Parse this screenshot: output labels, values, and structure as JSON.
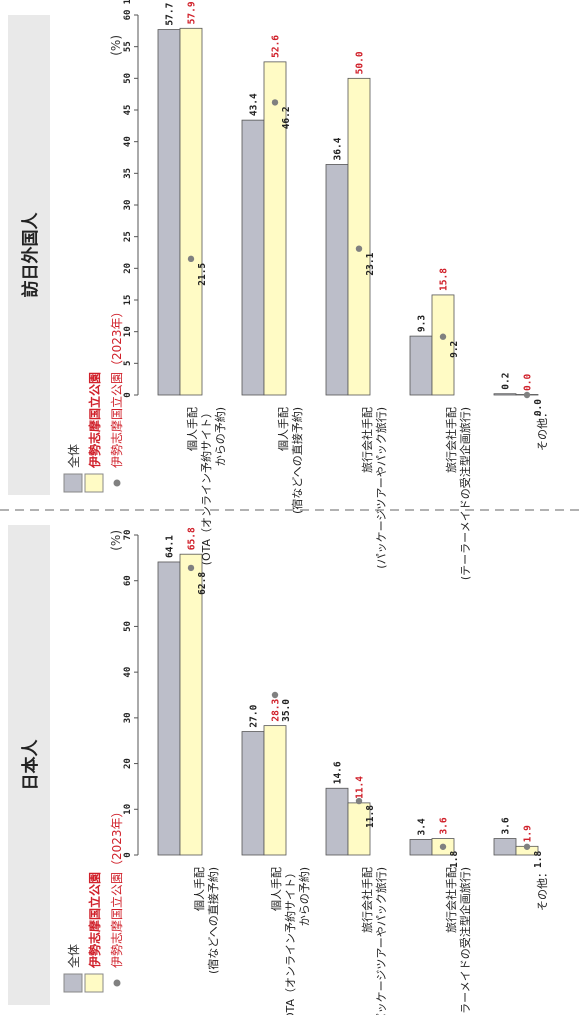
{
  "chart_data": [
    {
      "type": "bar",
      "title": "日本人",
      "unit": "(%)",
      "legend": {
        "overall": "全体",
        "ise": "伊勢志摩国立公園",
        "ise2023": "伊勢志摩国立公園（2023年）"
      },
      "categories": [
        [
          "個人手配",
          "(宿などへの直接予約)"
        ],
        [
          "個人手配",
          "(OTA（オンライン予約サイト）",
          "からの予約)"
        ],
        [
          "旅行会社手配",
          "(パッケージツアーやパック旅行)"
        ],
        [
          "旅行会社手配",
          "(テーラーメイドの受注型企画旅行)"
        ],
        [
          "その他："
        ]
      ],
      "ticks": [
        "0",
        "10",
        "20",
        "30",
        "40",
        "50",
        "60",
        "70"
      ],
      "ylim": [
        0,
        70
      ],
      "series": [
        {
          "name": "全体",
          "color": "#bcbec9",
          "values": [
            64.1,
            27.0,
            14.6,
            3.4,
            3.6
          ]
        },
        {
          "name": "伊勢志摩国立公園",
          "color": "#fffbc5",
          "values": [
            65.8,
            28.3,
            11.4,
            3.6,
            1.9
          ]
        },
        {
          "name": "伊勢志摩国立公園（2023年）",
          "color": "#808080",
          "values": [
            62.8,
            35.0,
            11.8,
            1.8,
            1.8
          ]
        }
      ],
      "labels": {
        "overall": [
          "64.1",
          "27.0",
          "14.6",
          "3.4",
          "3.6"
        ],
        "ise": [
          "65.8",
          "28.3",
          "11.4",
          "3.6",
          "1.9"
        ],
        "ise2023": [
          "62.8",
          "35.0",
          "11.8",
          "1.8",
          "1.8"
        ]
      }
    },
    {
      "type": "bar",
      "title": "訪日外国人",
      "unit": "(%)",
      "legend": {
        "overall": "全体",
        "ise": "伊勢志摩国立公園",
        "ise2023": "伊勢志摩国立公園（2023年）"
      },
      "categories": [
        [
          "個人手配",
          "(OTA（オンライン予約サイト）",
          "からの予約)"
        ],
        [
          "個人手配",
          "(宿などへの直接予約)"
        ],
        [
          "旅行会社手配",
          "(パッケージツアーやパック旅行)"
        ],
        [
          "旅行会社手配",
          "(テーラーメイドの受注型企画旅行)"
        ],
        [
          "その他："
        ]
      ],
      "ticks": [
        "0",
        "5",
        "10",
        "15",
        "20",
        "25",
        "30",
        "35",
        "40",
        "45",
        "50",
        "55",
        "60"
      ],
      "ylim": [
        0,
        60
      ],
      "series": [
        {
          "name": "全体",
          "color": "#bcbec9",
          "values": [
            57.7,
            43.4,
            36.4,
            9.3,
            0.2
          ]
        },
        {
          "name": "伊勢志摩国立公園",
          "color": "#fffbc5",
          "values": [
            57.9,
            52.6,
            50.0,
            15.8,
            0.0
          ]
        },
        {
          "name": "伊勢志摩国立公園（2023年）",
          "color": "#808080",
          "values": [
            21.5,
            46.2,
            23.1,
            9.2,
            0.0
          ]
        }
      ],
      "labels": {
        "overall": [
          "57.7",
          "43.4",
          "36.4",
          "9.3",
          "0.2"
        ],
        "ise": [
          "57.9",
          "52.6",
          "50.0",
          "15.8",
          "0.0"
        ],
        "ise2023": [
          "21.5",
          "46.2",
          "23.1",
          "9.2",
          "0.0"
        ]
      },
      "extra_tick": "15"
    }
  ]
}
